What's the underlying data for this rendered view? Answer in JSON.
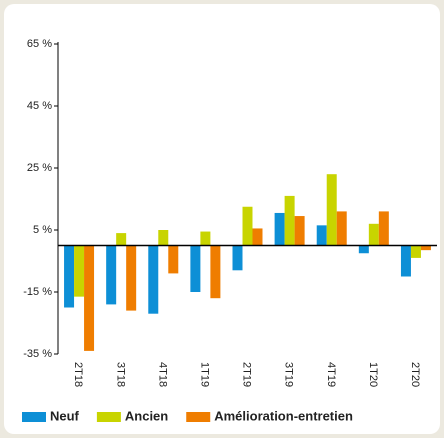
{
  "chart_data": {
    "type": "bar",
    "categories": [
      "2T18",
      "3T18",
      "4T18",
      "1T19",
      "2T19",
      "3T19",
      "4T19",
      "1T20",
      "2T20"
    ],
    "series": [
      {
        "name": "Neuf",
        "color": "#0d8fd6",
        "values": [
          -20,
          -19,
          -22,
          -15,
          -8,
          10.5,
          6.5,
          -2.5,
          -10
        ]
      },
      {
        "name": "Ancien",
        "color": "#c8d400",
        "values": [
          -16.5,
          4,
          5,
          4.5,
          12.5,
          16,
          23,
          7,
          -4
        ]
      },
      {
        "name": "Amélioration-entretien",
        "color": "#ef7d00",
        "values": [
          -34,
          -21,
          -9,
          -17,
          5.5,
          9.5,
          11,
          11,
          -1.5
        ]
      }
    ],
    "ylim": [
      -35,
      65
    ],
    "yticks": [
      {
        "value": -35,
        "label": "-35 %"
      },
      {
        "value": -15,
        "label": "-15 %"
      },
      {
        "value": 5,
        "label": "5 %"
      },
      {
        "value": 25,
        "label": "25 %"
      },
      {
        "value": 45,
        "label": "45 %"
      },
      {
        "value": 65,
        "label": "65 %"
      }
    ],
    "legend": "bottom"
  }
}
